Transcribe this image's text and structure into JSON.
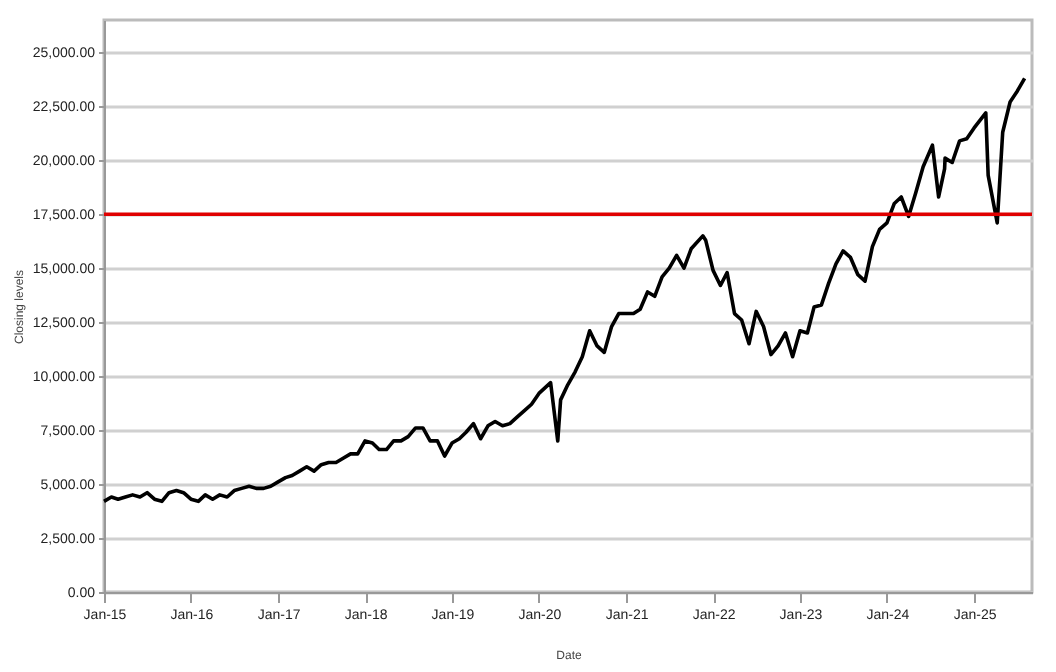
{
  "chart_data": {
    "type": "line",
    "xlabel": "Date",
    "ylabel": "Closing levels",
    "x": [
      "2015-01",
      "2015-02",
      "2015-03",
      "2015-04",
      "2015-05",
      "2015-06",
      "2015-07",
      "2015-08",
      "2015-09",
      "2015-10",
      "2015-11",
      "2015-12",
      "2016-01",
      "2016-02",
      "2016-03",
      "2016-04",
      "2016-05",
      "2016-06",
      "2016-07",
      "2016-08",
      "2016-09",
      "2016-10",
      "2016-11",
      "2016-12",
      "2017-01",
      "2017-02",
      "2017-03",
      "2017-04",
      "2017-05",
      "2017-06",
      "2017-07",
      "2017-08",
      "2017-09",
      "2017-10",
      "2017-11",
      "2017-12",
      "2018-01",
      "2018-02",
      "2018-03",
      "2018-04",
      "2018-05",
      "2018-06",
      "2018-07",
      "2018-08",
      "2018-09",
      "2018-10",
      "2018-11",
      "2018-12",
      "2019-01",
      "2019-02",
      "2019-03",
      "2019-04",
      "2019-05",
      "2019-06",
      "2019-07",
      "2019-08",
      "2019-09",
      "2019-10",
      "2019-11",
      "2019-12",
      "2020-01",
      "2020-02-19",
      "2020-03-20",
      "2020-04",
      "2020-05",
      "2020-06",
      "2020-07",
      "2020-08",
      "2020-09",
      "2020-10",
      "2020-11",
      "2020-12",
      "2021-01",
      "2021-02",
      "2021-03",
      "2021-04",
      "2021-05",
      "2021-06",
      "2021-07",
      "2021-08",
      "2021-09",
      "2021-10",
      "2021-11-19",
      "2021-12",
      "2022-01",
      "2022-02",
      "2022-03",
      "2022-04",
      "2022-05",
      "2022-06",
      "2022-07",
      "2022-08",
      "2022-09",
      "2022-10",
      "2022-11",
      "2022-12",
      "2023-01",
      "2023-02",
      "2023-03",
      "2023-04",
      "2023-05",
      "2023-06",
      "2023-07",
      "2023-08",
      "2023-09",
      "2023-10",
      "2023-11",
      "2023-12",
      "2024-01",
      "2024-02",
      "2024-03",
      "2024-04",
      "2024-05",
      "2024-06",
      "2024-07-10",
      "2024-08-05",
      "2024-08-30",
      "2024-09",
      "2024-10",
      "2024-11",
      "2024-12",
      "2025-01",
      "2025-02-19",
      "2025-03",
      "2025-04-08",
      "2025-05",
      "2025-06",
      "2025-07",
      "2025-08"
    ],
    "series": [
      {
        "color": "#000000",
        "values": [
          4200,
          4400,
          4300,
          4400,
          4500,
          4400,
          4600,
          4300,
          4200,
          4600,
          4700,
          4600,
          4300,
          4200,
          4500,
          4300,
          4500,
          4400,
          4700,
          4800,
          4900,
          4800,
          4800,
          4900,
          5100,
          5300,
          5400,
          5600,
          5800,
          5600,
          5900,
          6000,
          6000,
          6200,
          6400,
          6400,
          7000,
          6900,
          6600,
          6600,
          7000,
          7000,
          7200,
          7600,
          7600,
          7000,
          7000,
          6300,
          6900,
          7100,
          7400,
          7800,
          7100,
          7700,
          7900,
          7700,
          7800,
          8100,
          8400,
          8700,
          9200,
          9700,
          7000,
          8900,
          9600,
          10200,
          10900,
          12100,
          11400,
          11100,
          12300,
          12900,
          12900,
          12900,
          13100,
          13900,
          13700,
          14600,
          15000,
          15600,
          15000,
          15900,
          16500,
          16300,
          14900,
          14200,
          14800,
          12900,
          12600,
          11500,
          13000,
          12300,
          11000,
          11400,
          12000,
          10900,
          12100,
          12000,
          13200,
          13300,
          14300,
          15200,
          15800,
          15500,
          14700,
          14400,
          16000,
          16800,
          17100,
          18000,
          18300,
          17400,
          18500,
          19700,
          20700,
          18300,
          19600,
          20100,
          19900,
          20900,
          21000,
          21500,
          22200,
          19300,
          17100,
          21300,
          22700,
          23200,
          23800
        ]
      }
    ],
    "xlim": [
      "2015-01",
      "2025-09"
    ],
    "xticks": [
      {
        "value": "2015-01",
        "label": "Jan-15"
      },
      {
        "value": "2016-01",
        "label": "Jan-16"
      },
      {
        "value": "2017-01",
        "label": "Jan-17"
      },
      {
        "value": "2018-01",
        "label": "Jan-18"
      },
      {
        "value": "2019-01",
        "label": "Jan-19"
      },
      {
        "value": "2020-01",
        "label": "Jan-20"
      },
      {
        "value": "2021-01",
        "label": "Jan-21"
      },
      {
        "value": "2022-01",
        "label": "Jan-22"
      },
      {
        "value": "2023-01",
        "label": "Jan-23"
      },
      {
        "value": "2024-01",
        "label": "Jan-24"
      },
      {
        "value": "2025-01",
        "label": "Jan-25"
      }
    ],
    "ylim": [
      0,
      26500
    ],
    "yticks": [
      {
        "value": 0,
        "label": "0.00"
      },
      {
        "value": 2500,
        "label": "2,500.00"
      },
      {
        "value": 5000,
        "label": "5,000.00"
      },
      {
        "value": 7500,
        "label": "7,500.00"
      },
      {
        "value": 10000,
        "label": "10,000.00"
      },
      {
        "value": 12500,
        "label": "12,500.00"
      },
      {
        "value": 15000,
        "label": "15,000.00"
      },
      {
        "value": 17500,
        "label": "17,500.00"
      },
      {
        "value": 20000,
        "label": "20,000.00"
      },
      {
        "value": 22500,
        "label": "22,500.00"
      },
      {
        "value": 25000,
        "label": "25,000.00"
      }
    ],
    "ref_lines": [
      {
        "axis": "y",
        "value": 17500,
        "color": "#e00000"
      }
    ],
    "grid": "y",
    "marker": "none",
    "line_style": "solid"
  }
}
